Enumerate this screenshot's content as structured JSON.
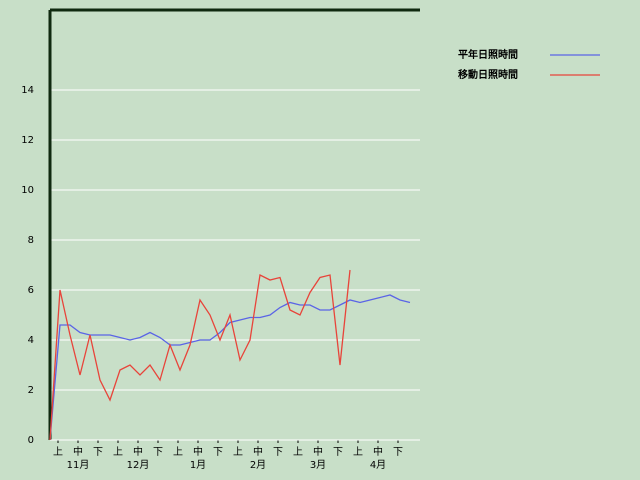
{
  "chart_data": {
    "type": "line",
    "x": [
      0,
      5,
      10,
      15,
      20,
      25,
      30,
      35,
      40,
      45,
      50,
      55,
      60,
      65,
      70,
      75,
      80,
      85,
      90,
      95,
      100,
      105,
      110,
      115,
      120,
      125,
      130,
      135,
      140,
      145,
      150,
      155,
      160,
      165,
      170,
      175,
      180
    ],
    "xlim": [
      0,
      185
    ],
    "xticks": [
      {
        "value": 4,
        "label": "上"
      },
      {
        "value": 14,
        "label": "中"
      },
      {
        "value": 24,
        "label": "下"
      },
      {
        "value": 34,
        "label": "上"
      },
      {
        "value": 44,
        "label": "中"
      },
      {
        "value": 54,
        "label": "下"
      },
      {
        "value": 64,
        "label": "上"
      },
      {
        "value": 74,
        "label": "中"
      },
      {
        "value": 84,
        "label": "下"
      },
      {
        "value": 94,
        "label": "上"
      },
      {
        "value": 104,
        "label": "中"
      },
      {
        "value": 114,
        "label": "下"
      },
      {
        "value": 124,
        "label": "上"
      },
      {
        "value": 134,
        "label": "中"
      },
      {
        "value": 144,
        "label": "下"
      },
      {
        "value": 154,
        "label": "上"
      },
      {
        "value": 164,
        "label": "中"
      },
      {
        "value": 174,
        "label": "下"
      }
    ],
    "month_labels": [
      "11月",
      "12月",
      "1月",
      "2月",
      "3月",
      "4月"
    ],
    "ylim": [
      0,
      17.2
    ],
    "yticks": [
      0,
      2,
      4,
      6,
      8,
      10,
      12,
      14
    ],
    "grid": true,
    "series": [
      {
        "name": "平年日照時間",
        "color": "#5a64e6",
        "values": [
          0,
          4.6,
          4.6,
          4.3,
          4.2,
          4.2,
          4.2,
          4.1,
          4.0,
          4.1,
          4.3,
          4.1,
          3.8,
          3.8,
          3.9,
          4.0,
          4.0,
          4.3,
          4.7,
          4.8,
          4.9,
          4.9,
          5.0,
          5.3,
          5.5,
          5.4,
          5.4,
          5.2,
          5.2,
          5.4,
          5.6,
          5.5,
          5.6,
          5.7,
          5.8,
          5.6,
          5.5
        ]
      },
      {
        "name": "移動日照時間",
        "color": "#e8443a",
        "values": [
          0,
          6.0,
          4.2,
          2.6,
          4.2,
          2.4,
          1.6,
          2.8,
          3.0,
          2.6,
          3.0,
          2.4,
          3.8,
          2.8,
          3.8,
          5.6,
          5.0,
          4.0,
          5.0,
          3.2,
          4.0,
          6.6,
          6.4,
          6.5,
          5.2,
          5.0,
          5.9,
          6.5,
          6.6,
          3.0,
          6.8,
          null,
          null,
          null,
          null,
          null,
          null
        ]
      }
    ]
  }
}
